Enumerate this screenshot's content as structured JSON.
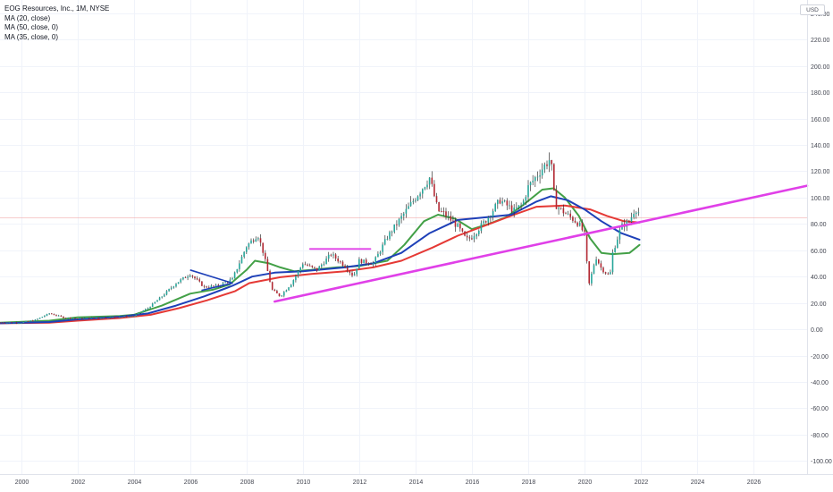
{
  "chart_data": {
    "type": "candlestick",
    "title": "EOG Resources, Inc., 1M, NYSE",
    "currency": "USD",
    "x_range": [
      1999.25,
      2027.9
    ],
    "y_range": [
      -110,
      250
    ],
    "y_ticks": [
      240,
      220,
      200,
      180,
      160,
      140,
      120,
      100,
      80,
      60,
      40,
      20,
      0,
      -20,
      -40,
      -60,
      -80,
      -100
    ],
    "y_tick_labels": [
      "240.00",
      "220.00",
      "200.00",
      "180.00",
      "160.00",
      "140.00",
      "120.00",
      "100.00",
      "80.00",
      "60.00",
      "40.00",
      "20.00",
      "0.00",
      "-20.00",
      "-40.00",
      "-60.00",
      "-80.00",
      "-100.00"
    ],
    "x_ticks": [
      2000,
      2002,
      2004,
      2006,
      2008,
      2010,
      2012,
      2014,
      2016,
      2018,
      2020,
      2022,
      2024,
      2026
    ],
    "x_tick_labels": [
      "2000",
      "2002",
      "2004",
      "2006",
      "2008",
      "2010",
      "2012",
      "2014",
      "2016",
      "2018",
      "2020",
      "2022",
      "2024",
      "2026"
    ],
    "current_price": 85,
    "grid": true,
    "legend": [
      {
        "name": "MA (20, close)",
        "color": "#43a047"
      },
      {
        "name": "MA (50, close, 0)",
        "color": "#e53935"
      },
      {
        "name": "MA (35, close, 0)",
        "color": "#1e40b8"
      }
    ],
    "candle_colors": {
      "up": "#26a69a",
      "down": "#b22833",
      "wick": "#333333"
    },
    "price_keypoints": [
      [
        1999.25,
        5
      ],
      [
        2000,
        5
      ],
      [
        2000.5,
        7
      ],
      [
        2001,
        12
      ],
      [
        2001.5,
        9
      ],
      [
        2002,
        8
      ],
      [
        2003,
        9
      ],
      [
        2004,
        10
      ],
      [
        2004.5,
        16
      ],
      [
        2005,
        25
      ],
      [
        2005.5,
        35
      ],
      [
        2006,
        42
      ],
      [
        2006.5,
        32
      ],
      [
        2007,
        33
      ],
      [
        2007.5,
        38
      ],
      [
        2008,
        63
      ],
      [
        2008.4,
        72
      ],
      [
        2008.6,
        58
      ],
      [
        2008.9,
        30
      ],
      [
        2009.2,
        25
      ],
      [
        2009.6,
        35
      ],
      [
        2010,
        50
      ],
      [
        2010.5,
        45
      ],
      [
        2011,
        57
      ],
      [
        2011.5,
        48
      ],
      [
        2011.8,
        40
      ],
      [
        2012,
        52
      ],
      [
        2012.5,
        50
      ],
      [
        2013,
        70
      ],
      [
        2013.5,
        85
      ],
      [
        2014,
        100
      ],
      [
        2014.5,
        115
      ],
      [
        2014.8,
        90
      ],
      [
        2015,
        88
      ],
      [
        2015.5,
        78
      ],
      [
        2015.8,
        68
      ],
      [
        2016,
        70
      ],
      [
        2016.5,
        83
      ],
      [
        2017,
        98
      ],
      [
        2017.5,
        90
      ],
      [
        2017.8,
        95
      ],
      [
        2018,
        108
      ],
      [
        2018.5,
        122
      ],
      [
        2018.8,
        130
      ],
      [
        2018.95,
        95
      ],
      [
        2019.2,
        90
      ],
      [
        2019.5,
        85
      ],
      [
        2019.8,
        80
      ],
      [
        2020,
        72
      ],
      [
        2020.15,
        33
      ],
      [
        2020.4,
        55
      ],
      [
        2020.6,
        46
      ],
      [
        2020.9,
        40
      ],
      [
        2021,
        58
      ],
      [
        2021.3,
        78
      ],
      [
        2021.6,
        82
      ],
      [
        2021.8,
        92
      ],
      [
        2021.95,
        88
      ]
    ],
    "moving_averages": [
      {
        "name": "MA (20, close)",
        "color": "#43a047",
        "points": [
          [
            1999.25,
            5
          ],
          [
            2001,
            6.5
          ],
          [
            2002,
            9
          ],
          [
            2003.5,
            10
          ],
          [
            2004,
            11
          ],
          [
            2005,
            18
          ],
          [
            2006,
            27
          ],
          [
            2006.8,
            30
          ],
          [
            2007.4,
            34
          ],
          [
            2008,
            45
          ],
          [
            2008.3,
            52
          ],
          [
            2008.8,
            50
          ],
          [
            2009.2,
            47
          ],
          [
            2009.7,
            44
          ],
          [
            2010.3,
            45
          ],
          [
            2011.2,
            47
          ],
          [
            2012,
            48
          ],
          [
            2013,
            52
          ],
          [
            2013.6,
            64
          ],
          [
            2014.3,
            82
          ],
          [
            2014.8,
            87
          ],
          [
            2015.4,
            84
          ],
          [
            2016,
            76
          ],
          [
            2016.6,
            80
          ],
          [
            2017.2,
            85
          ],
          [
            2017.8,
            94
          ],
          [
            2018.5,
            106
          ],
          [
            2018.9,
            107
          ],
          [
            2019.3,
            100
          ],
          [
            2019.8,
            86
          ],
          [
            2020.2,
            69
          ],
          [
            2020.6,
            58
          ],
          [
            2021,
            57
          ],
          [
            2021.6,
            58
          ],
          [
            2021.95,
            64
          ]
        ]
      },
      {
        "name": "MA (50, close, 0)",
        "color": "#e53935",
        "points": [
          [
            1999.25,
            4.5
          ],
          [
            2001,
            5
          ],
          [
            2002,
            6.5
          ],
          [
            2003.5,
            8.5
          ],
          [
            2004.6,
            11
          ],
          [
            2005.6,
            16
          ],
          [
            2006.6,
            22
          ],
          [
            2007.6,
            29
          ],
          [
            2008.1,
            35
          ],
          [
            2009.2,
            39.5
          ],
          [
            2010.3,
            42
          ],
          [
            2011.5,
            44
          ],
          [
            2012.5,
            47
          ],
          [
            2013.5,
            52
          ],
          [
            2014.6,
            62
          ],
          [
            2015.5,
            71
          ],
          [
            2016.5,
            79
          ],
          [
            2017.5,
            87
          ],
          [
            2018.3,
            93
          ],
          [
            2019.3,
            94
          ],
          [
            2020.2,
            91
          ],
          [
            2020.8,
            86
          ],
          [
            2021.4,
            82
          ],
          [
            2021.95,
            81
          ]
        ]
      },
      {
        "name": "MA (35, close, 0)",
        "color": "#1e40b8",
        "points": [
          [
            1999.25,
            4.5
          ],
          [
            2001,
            5.5
          ],
          [
            2002,
            7.5
          ],
          [
            2003.5,
            9.5
          ],
          [
            2004.5,
            12
          ],
          [
            2005.5,
            18
          ],
          [
            2006.5,
            25
          ],
          [
            2007.5,
            33
          ],
          [
            2008.2,
            40
          ],
          [
            2009,
            43
          ],
          [
            2010,
            44
          ],
          [
            2011.5,
            47
          ],
          [
            2012.5,
            50
          ],
          [
            2013.5,
            58
          ],
          [
            2014.5,
            73
          ],
          [
            2015.5,
            83
          ],
          [
            2016.5,
            85
          ],
          [
            2017.4,
            87
          ],
          [
            2018.3,
            97
          ],
          [
            2018.8,
            101
          ],
          [
            2019.4,
            98
          ],
          [
            2020,
            91
          ],
          [
            2020.6,
            82
          ],
          [
            2021.3,
            73
          ],
          [
            2021.95,
            68
          ]
        ]
      }
    ],
    "drawings": [
      {
        "kind": "trendline",
        "color": "#e040e8",
        "points": [
          [
            2009,
            21
          ],
          [
            2027.9,
            109
          ]
        ]
      },
      {
        "kind": "horizontal",
        "color": "#e040e8",
        "points": [
          [
            2010.25,
            61
          ],
          [
            2012.4,
            61
          ]
        ]
      },
      {
        "kind": "wedge",
        "color": "#1e40b8",
        "points": [
          [
            2006,
            45
          ],
          [
            2007.5,
            35
          ],
          [
            2006.4,
            29.5
          ]
        ]
      }
    ]
  }
}
